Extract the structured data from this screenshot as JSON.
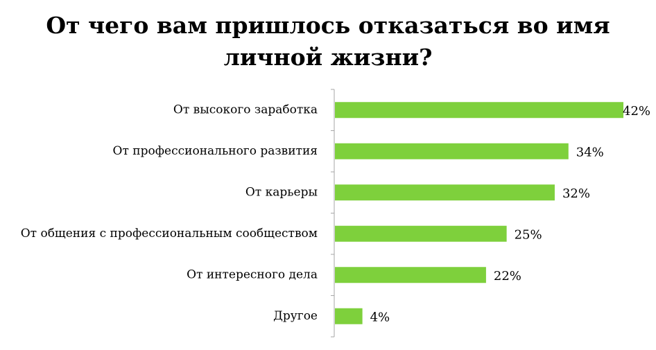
{
  "chart_data": {
    "type": "bar",
    "orientation": "horizontal",
    "title_lines": [
      "От чего вам пришлось отказаться во имя",
      "личной жизни?"
    ],
    "categories": [
      "От высокого заработка",
      "От профессионального развития",
      "От карьеры",
      "От общения с профессиональным сообществом",
      "От интересного дела",
      "Другое"
    ],
    "values": [
      42,
      34,
      32,
      25,
      22,
      4
    ],
    "value_labels": [
      "42%",
      "34%",
      "32%",
      "25%",
      "22%",
      "4%"
    ],
    "unit": "%",
    "bar_color": "#7ed03c",
    "axis_color": "#a6a6a6",
    "xlim": [
      0,
      42
    ],
    "grid": false,
    "legend": "none"
  }
}
